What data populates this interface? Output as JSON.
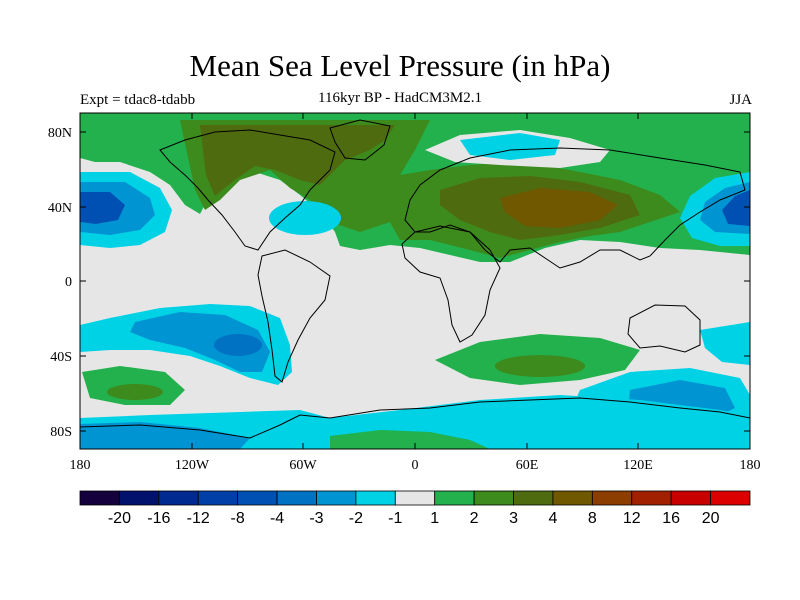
{
  "title": "Mean Sea Level Pressure (in hPa)",
  "left_label": "Expt = tdac8-tdabb",
  "subtitle": "116kyr BP - HadCM3M2.1",
  "season": "JJA",
  "axes": {
    "lon_ticks": [
      "180",
      "120W",
      "60W",
      "0",
      "60E",
      "120E",
      "180"
    ],
    "lat_ticks": [
      "80N",
      "40N",
      "0",
      "40S",
      "80S"
    ]
  },
  "colorbar": {
    "labels": [
      "-20",
      "-16",
      "-12",
      "-8",
      "-4",
      "-3",
      "-2",
      "-1",
      "1",
      "2",
      "3",
      "4",
      "8",
      "12",
      "16",
      "20"
    ],
    "colors": [
      "#14003c",
      "#00126b",
      "#002a90",
      "#003fa8",
      "#0050b4",
      "#0072c4",
      "#0095d2",
      "#00d2e6",
      "#e6e6e6",
      "#22b14c",
      "#3d8a1d",
      "#4f6b0f",
      "#705800",
      "#8c3d00",
      "#a02000",
      "#c80000",
      "#dc0000"
    ]
  },
  "map_colors": {
    "background": "#e6e6e6",
    "cyan": "#00d2e6",
    "mid_blue": "#0095d2",
    "blue": "#0072c4",
    "dark_blue": "#0050b4",
    "green": "#22b14c",
    "dark_green": "#3d8a1d",
    "olive": "#4f6b0f",
    "brown": "#705800"
  }
}
